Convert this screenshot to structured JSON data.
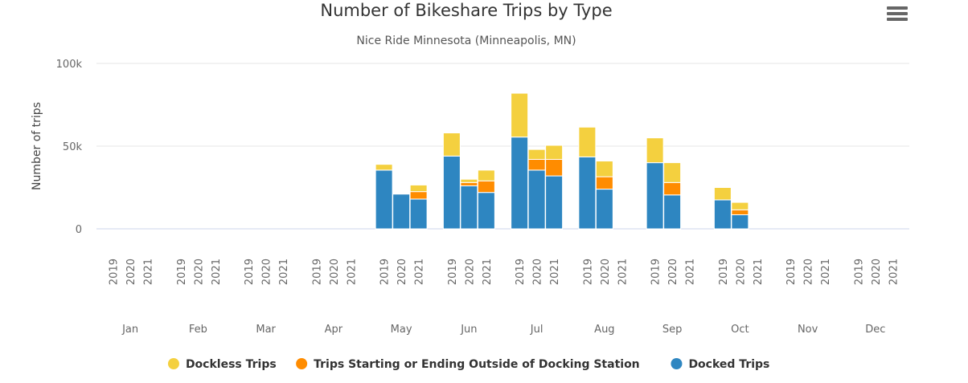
{
  "chart_data": {
    "type": "bar",
    "stacked": true,
    "title": "Number of Bikeshare Trips by Type",
    "subtitle": "Nice Ride Minnesota (Minneapolis, MN)",
    "ylabel": "Number of trips",
    "ylim": [
      0,
      100000
    ],
    "yticks": [
      {
        "value": 0,
        "label": "0"
      },
      {
        "value": 50000,
        "label": "50k"
      },
      {
        "value": 100000,
        "label": "100k"
      }
    ],
    "grid": true,
    "legend_position": "bottom-center",
    "months": [
      "Jan",
      "Feb",
      "Mar",
      "Apr",
      "May",
      "Jun",
      "Jul",
      "Aug",
      "Sep",
      "Oct",
      "Nov",
      "Dec"
    ],
    "years": [
      "2019",
      "2020",
      "2021"
    ],
    "series": [
      {
        "name": "Docked Trips",
        "color": "#2e86c1",
        "values": [
          [
            null,
            null,
            null
          ],
          [
            null,
            null,
            null
          ],
          [
            null,
            null,
            null
          ],
          [
            null,
            null,
            null
          ],
          [
            35500,
            21000,
            18000
          ],
          [
            44000,
            26000,
            22000
          ],
          [
            55500,
            35500,
            32000
          ],
          [
            43500,
            24000,
            null
          ],
          [
            40000,
            20500,
            null
          ],
          [
            17500,
            8500,
            null
          ],
          [
            null,
            null,
            null
          ],
          [
            null,
            null,
            null
          ]
        ]
      },
      {
        "name": "Trips Starting or Ending Outside of Docking Station",
        "color": "#ff8c00",
        "values": [
          [
            null,
            null,
            null
          ],
          [
            null,
            null,
            null
          ],
          [
            null,
            null,
            null
          ],
          [
            null,
            null,
            null
          ],
          [
            0,
            0,
            4500
          ],
          [
            0,
            2000,
            7000
          ],
          [
            0,
            6500,
            10000
          ],
          [
            0,
            7500,
            null
          ],
          [
            0,
            7500,
            null
          ],
          [
            0,
            3000,
            null
          ],
          [
            null,
            null,
            null
          ],
          [
            null,
            null,
            null
          ]
        ]
      },
      {
        "name": "Dockless Trips",
        "color": "#f4d03f",
        "values": [
          [
            null,
            null,
            null
          ],
          [
            null,
            null,
            null
          ],
          [
            null,
            null,
            null
          ],
          [
            null,
            null,
            null
          ],
          [
            3500,
            0,
            4000
          ],
          [
            14000,
            2000,
            6500
          ],
          [
            26500,
            6000,
            8500
          ],
          [
            18000,
            9500,
            null
          ],
          [
            15000,
            12000,
            null
          ],
          [
            7500,
            4500,
            null
          ],
          [
            null,
            null,
            null
          ],
          [
            null,
            null,
            null
          ]
        ]
      }
    ],
    "legend_order": [
      "Dockless Trips",
      "Trips Starting or Ending Outside of Docking Station",
      "Docked Trips"
    ]
  },
  "toolbar": {
    "menu_icon": "hamburger-menu-icon"
  }
}
